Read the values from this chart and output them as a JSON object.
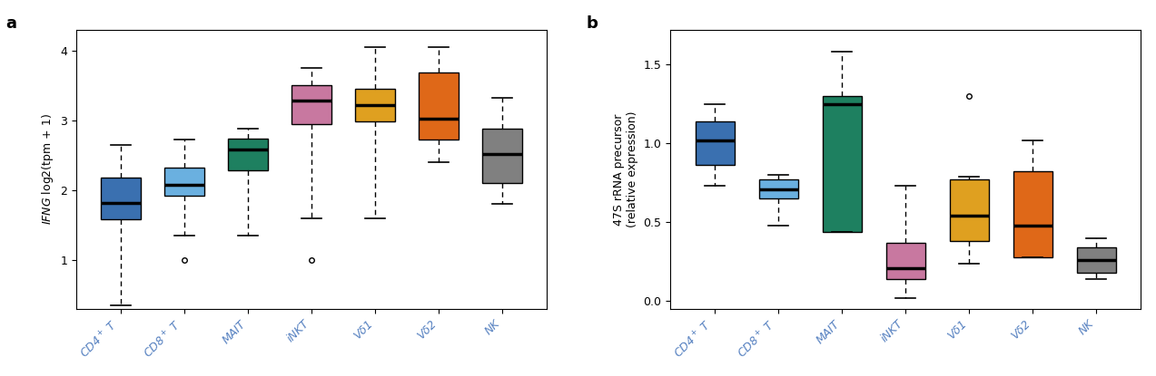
{
  "panel_a": {
    "title": "a",
    "categories": [
      "CD4$^+$ T",
      "CD8$^+$ T",
      "MAIT",
      "iNKT",
      "Vδ1",
      "Vδ2",
      "NK"
    ],
    "colors": [
      "#3a70b0",
      "#6ab0e0",
      "#1e8060",
      "#c878a0",
      "#dfa020",
      "#df6818",
      "#808080"
    ],
    "ylim": [
      0.3,
      4.3
    ],
    "yticks": [
      1,
      2,
      3,
      4
    ],
    "boxes": [
      {
        "q1": 1.58,
        "median": 1.82,
        "q3": 2.18,
        "whislo": 0.35,
        "whishi": 2.65,
        "fliers": []
      },
      {
        "q1": 1.92,
        "median": 2.08,
        "q3": 2.32,
        "whislo": 1.35,
        "whishi": 2.72,
        "fliers": [
          1.0
        ]
      },
      {
        "q1": 2.28,
        "median": 2.58,
        "q3": 2.74,
        "whislo": 1.35,
        "whishi": 2.88,
        "fliers": []
      },
      {
        "q1": 2.95,
        "median": 3.28,
        "q3": 3.5,
        "whislo": 1.6,
        "whishi": 3.75,
        "fliers": [
          1.0
        ]
      },
      {
        "q1": 2.98,
        "median": 3.22,
        "q3": 3.45,
        "whislo": 1.6,
        "whishi": 4.05,
        "fliers": []
      },
      {
        "q1": 2.72,
        "median": 3.02,
        "q3": 3.68,
        "whislo": 2.4,
        "whishi": 4.05,
        "fliers": []
      },
      {
        "q1": 2.1,
        "median": 2.52,
        "q3": 2.88,
        "whislo": 1.8,
        "whishi": 3.32,
        "fliers": []
      }
    ]
  },
  "panel_b": {
    "title": "b",
    "categories": [
      "CD4$^+$ T",
      "CD8$^+$ T",
      "MAIT",
      "iNKT",
      "Vδ1",
      "Vδ2",
      "NK"
    ],
    "colors": [
      "#3a70b0",
      "#6ab0e0",
      "#1e8060",
      "#c878a0",
      "#dfa020",
      "#df6818",
      "#808080"
    ],
    "ylim": [
      -0.05,
      1.72
    ],
    "yticks": [
      0.0,
      0.5,
      1.0,
      1.5
    ],
    "boxes": [
      {
        "q1": 0.86,
        "median": 1.02,
        "q3": 1.14,
        "whislo": 0.73,
        "whishi": 1.25,
        "fliers": []
      },
      {
        "q1": 0.65,
        "median": 0.71,
        "q3": 0.77,
        "whislo": 0.48,
        "whishi": 0.8,
        "fliers": []
      },
      {
        "q1": 0.44,
        "median": 1.25,
        "q3": 1.3,
        "whislo": 0.44,
        "whishi": 1.58,
        "fliers": []
      },
      {
        "q1": 0.14,
        "median": 0.21,
        "q3": 0.37,
        "whislo": 0.02,
        "whishi": 0.73,
        "fliers": []
      },
      {
        "q1": 0.38,
        "median": 0.54,
        "q3": 0.77,
        "whislo": 0.24,
        "whishi": 0.79,
        "fliers": [
          1.3
        ]
      },
      {
        "q1": 0.28,
        "median": 0.48,
        "q3": 0.82,
        "whislo": 0.28,
        "whishi": 1.02,
        "fliers": []
      },
      {
        "q1": 0.18,
        "median": 0.26,
        "q3": 0.34,
        "whislo": 0.14,
        "whishi": 0.4,
        "fliers": []
      }
    ]
  },
  "figure_width": 12.73,
  "figure_height": 4.15,
  "dpi": 100
}
